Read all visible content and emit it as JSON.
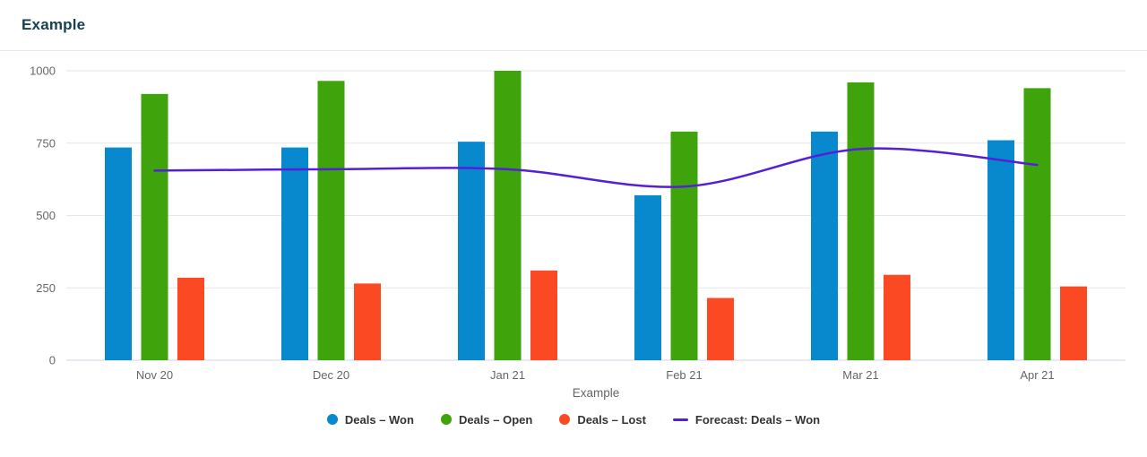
{
  "header": {
    "title": "Example"
  },
  "chart_data": {
    "type": "bar",
    "title": "",
    "xlabel": "Example",
    "ylabel": "",
    "categories": [
      "Nov 20",
      "Dec 20",
      "Jan 21",
      "Feb 21",
      "Mar 21",
      "Apr 21"
    ],
    "series": [
      {
        "name": "Deals – Won",
        "type": "column",
        "color": "#0989cd",
        "values": [
          735,
          735,
          755,
          570,
          790,
          760
        ]
      },
      {
        "name": "Deals – Open",
        "type": "column",
        "color": "#3fa30b",
        "values": [
          920,
          965,
          1000,
          790,
          960,
          940
        ]
      },
      {
        "name": "Deals – Lost",
        "type": "column",
        "color": "#fb4a23",
        "values": [
          285,
          265,
          310,
          215,
          295,
          255
        ]
      },
      {
        "name": "Forecast: Deals – Won",
        "type": "line",
        "color": "#5320d8",
        "values": [
          655,
          660,
          660,
          600,
          730,
          675
        ]
      }
    ],
    "ylim": [
      0,
      1000
    ],
    "yticks": [
      0,
      250,
      500,
      750,
      1000
    ],
    "grid": true,
    "legend_position": "bottom",
    "axis_style": {
      "label_color": "#666666",
      "grid_color": "#e6e6e6",
      "baseline_color": "#ccd6eb"
    }
  }
}
